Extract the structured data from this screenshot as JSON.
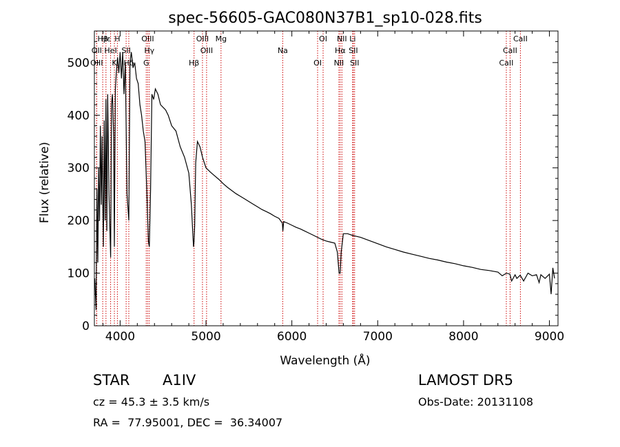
{
  "chart_data": {
    "type": "line",
    "title": "spec-56605-GAC080N37B1_sp10-028.fits",
    "xlabel": "Wavelength (Å)",
    "ylabel": "Flux (relative)",
    "xlim": [
      3700,
      9100
    ],
    "ylim": [
      0,
      560
    ],
    "xticks": [
      4000,
      5000,
      6000,
      7000,
      8000,
      9000
    ],
    "yticks": [
      0,
      100,
      200,
      300,
      400,
      500
    ],
    "grid": false,
    "line_color": "#000000",
    "marker_color": "#cc0000",
    "series": [
      {
        "x": [
          3705,
          3720,
          3730,
          3740,
          3750,
          3760,
          3770,
          3780,
          3790,
          3797,
          3805,
          3815,
          3825,
          3835,
          3845,
          3855,
          3870,
          3889,
          3900,
          3910,
          3925,
          3933,
          3945,
          3955,
          3970,
          3985,
          4000,
          4015,
          4030,
          4045,
          4060,
          4080,
          4101,
          4115,
          4130,
          4150,
          4170,
          4190,
          4210,
          4230,
          4250,
          4270,
          4290,
          4310,
          4330,
          4340,
          4355,
          4370,
          4390,
          4410,
          4440,
          4470,
          4500,
          4530,
          4560,
          4600,
          4650,
          4700,
          4750,
          4800,
          4830,
          4845,
          4855,
          4861,
          4868,
          4880,
          4900,
          4930,
          4960,
          5000,
          5050,
          5100,
          5150,
          5200,
          5250,
          5300,
          5350,
          5400,
          5450,
          5500,
          5550,
          5600,
          5650,
          5700,
          5750,
          5800,
          5850,
          5890,
          5895,
          5905,
          5950,
          6000,
          6050,
          6100,
          6150,
          6200,
          6250,
          6300,
          6350,
          6400,
          6450,
          6500,
          6530,
          6550,
          6563,
          6575,
          6600,
          6650,
          6700,
          6750,
          6800,
          6900,
          7000,
          7100,
          7200,
          7300,
          7400,
          7500,
          7600,
          7700,
          7800,
          7900,
          8000,
          8100,
          8200,
          8300,
          8400,
          8450,
          8500,
          8540,
          8560,
          8600,
          8620,
          8660,
          8700,
          8750,
          8800,
          8850,
          8880,
          8900,
          8950,
          9000,
          9020,
          9040,
          9060
        ],
        "y": [
          90,
          30,
          260,
          120,
          300,
          200,
          380,
          230,
          360,
          250,
          150,
          390,
          200,
          430,
          180,
          440,
          250,
          130,
          420,
          440,
          360,
          150,
          450,
          480,
          510,
          480,
          520,
          470,
          520,
          440,
          500,
          250,
          200,
          500,
          520,
          490,
          500,
          470,
          460,
          420,
          400,
          370,
          350,
          260,
          160,
          150,
          260,
          440,
          430,
          450,
          440,
          420,
          415,
          410,
          400,
          380,
          370,
          340,
          320,
          290,
          230,
          180,
          150,
          160,
          190,
          310,
          350,
          340,
          320,
          300,
          292,
          285,
          278,
          270,
          263,
          257,
          251,
          246,
          241,
          236,
          231,
          226,
          221,
          217,
          213,
          208,
          204,
          195,
          180,
          198,
          195,
          191,
          187,
          184,
          180,
          176,
          172,
          168,
          164,
          161,
          159,
          157,
          140,
          100,
          100,
          140,
          175,
          175,
          172,
          170,
          168,
          162,
          156,
          150,
          145,
          140,
          136,
          132,
          128,
          125,
          121,
          118,
          114,
          111,
          107,
          105,
          102,
          95,
          100,
          98,
          85,
          97,
          90,
          96,
          85,
          100,
          95,
          97,
          82,
          97,
          90,
          98,
          60,
          110,
          90
        ]
      }
    ],
    "line_markers": [
      {
        "label": "Hβ",
        "x": 3797
      },
      {
        "label": "OII",
        "x": 3727
      },
      {
        "label": "OIII",
        "x": 3727
      },
      {
        "label": "Hε",
        "x": 3835
      },
      {
        "label": "HeI",
        "x": 3889
      },
      {
        "label": "K",
        "x": 3933
      },
      {
        "label": "H",
        "x": 3968
      },
      {
        "label": "SII",
        "x": 4070
      },
      {
        "label": "Hδ",
        "x": 4101
      },
      {
        "label": "OIII",
        "x": 4321
      },
      {
        "label": "Hγ",
        "x": 4340
      },
      {
        "label": "G",
        "x": 4304
      },
      {
        "label": "OIII",
        "x": 4959
      },
      {
        "label": "OIII",
        "x": 5007
      },
      {
        "label": "Hβ",
        "x": 4861
      },
      {
        "label": "Mg",
        "x": 5175
      },
      {
        "label": "Na",
        "x": 5894
      },
      {
        "label": "OI",
        "x": 6300
      },
      {
        "label": "OI",
        "x": 6364
      },
      {
        "label": "Hα",
        "x": 6563
      },
      {
        "label": "NII",
        "x": 6548
      },
      {
        "label": "NII",
        "x": 6583
      },
      {
        "label": "SII",
        "x": 6716
      },
      {
        "label": "SII",
        "x": 6731
      },
      {
        "label": "Li",
        "x": 6708
      },
      {
        "label": "CaII",
        "x": 8542
      },
      {
        "label": "CaII",
        "x": 8498
      },
      {
        "label": "CaII",
        "x": 8662
      }
    ]
  },
  "info": {
    "object_type": "STAR",
    "subclass": "A1IV",
    "survey": "LAMOST DR5",
    "redshift_line": "cz = 45.3 ± 3.5 km/s",
    "obs_date": "Obs-Date: 20131108",
    "coords": "RA =  77.95001, DEC =  36.34007"
  }
}
